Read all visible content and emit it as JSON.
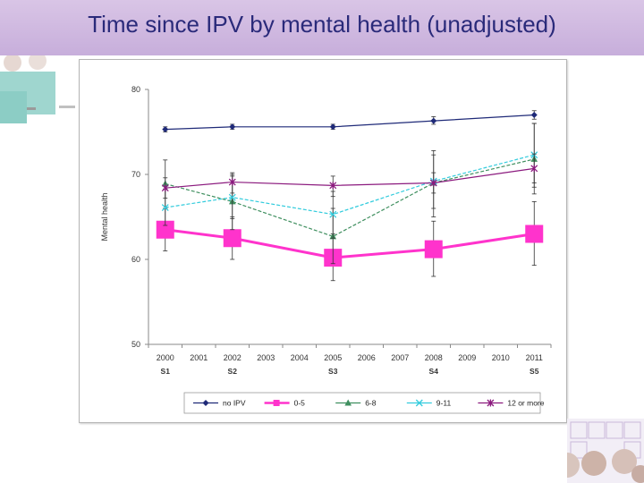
{
  "page": {
    "title": "Time since IPV by mental health (unadjusted)"
  },
  "chart_data": {
    "type": "line",
    "title": "",
    "xlabel": "",
    "ylabel": "Mental health",
    "x": [
      "2000",
      "2001",
      "2002",
      "2003",
      "2004",
      "2005",
      "2006",
      "2007",
      "2008",
      "2009",
      "2010",
      "2011"
    ],
    "ylim": [
      50,
      80
    ],
    "yticks": [
      50,
      60,
      70,
      80
    ],
    "grid": false,
    "legend": "bottom",
    "survey_labels": [
      {
        "x": "2000",
        "label": "S1"
      },
      {
        "x": "2002",
        "label": "S2"
      },
      {
        "x": "2005",
        "label": "S3"
      },
      {
        "x": "2008",
        "label": "S4"
      },
      {
        "x": "2011",
        "label": "S5"
      }
    ],
    "series": [
      {
        "name": "no IPV",
        "color": "#1f2a78",
        "marker": "diamond",
        "points": [
          {
            "x": "2000",
            "y": 75.3,
            "lo": 75.0,
            "hi": 75.6
          },
          {
            "x": "2002",
            "y": 75.6,
            "lo": 75.3,
            "hi": 75.9
          },
          {
            "x": "2005",
            "y": 75.6,
            "lo": 75.3,
            "hi": 75.9
          },
          {
            "x": "2008",
            "y": 76.3,
            "lo": 75.9,
            "hi": 76.8
          },
          {
            "x": "2011",
            "y": 77.0,
            "lo": 76.5,
            "hi": 77.5
          }
        ]
      },
      {
        "name": "0-5",
        "color": "#ff33cc",
        "marker": "square",
        "points": [
          {
            "x": "2000",
            "y": 63.5,
            "lo": 61.0,
            "hi": 66.0
          },
          {
            "x": "2002",
            "y": 62.5,
            "lo": 60.0,
            "hi": 65.0
          },
          {
            "x": "2005",
            "y": 60.2,
            "lo": 57.5,
            "hi": 63.0
          },
          {
            "x": "2008",
            "y": 61.2,
            "lo": 58.0,
            "hi": 64.5
          },
          {
            "x": "2011",
            "y": 63.0,
            "lo": 59.3,
            "hi": 66.8
          }
        ]
      },
      {
        "name": "6-8",
        "color": "#3f8f5f",
        "marker": "triangle",
        "points": [
          {
            "x": "2000",
            "y": 68.9,
            "lo": 66.0,
            "hi": 71.7
          },
          {
            "x": "2002",
            "y": 66.8,
            "lo": 63.5,
            "hi": 70.0
          },
          {
            "x": "2005",
            "y": 62.7,
            "lo": 59.5,
            "hi": 66.0
          },
          {
            "x": "2008",
            "y": 69.0,
            "lo": 65.0,
            "hi": 72.8
          },
          {
            "x": "2011",
            "y": 71.8,
            "lo": 67.7,
            "hi": 76.0
          }
        ]
      },
      {
        "name": "9-11",
        "color": "#33ccdd",
        "marker": "x",
        "points": [
          {
            "x": "2000",
            "y": 66.1,
            "lo": 64.0,
            "hi": 68.3
          },
          {
            "x": "2002",
            "y": 67.3,
            "lo": 64.8,
            "hi": 69.8
          },
          {
            "x": "2005",
            "y": 65.3,
            "lo": 62.5,
            "hi": 68.0
          },
          {
            "x": "2008",
            "y": 69.2,
            "lo": 66.0,
            "hi": 72.3
          },
          {
            "x": "2011",
            "y": 72.3,
            "lo": 68.5,
            "hi": 76.0
          }
        ]
      },
      {
        "name": "12 or more",
        "color": "#8b1a7e",
        "marker": "star",
        "points": [
          {
            "x": "2000",
            "y": 68.4,
            "lo": 67.2,
            "hi": 69.6
          },
          {
            "x": "2002",
            "y": 69.1,
            "lo": 67.8,
            "hi": 70.2
          },
          {
            "x": "2005",
            "y": 68.7,
            "lo": 67.4,
            "hi": 69.8
          },
          {
            "x": "2008",
            "y": 69.0,
            "lo": 67.8,
            "hi": 70.2
          },
          {
            "x": "2011",
            "y": 70.7,
            "lo": 69.0,
            "hi": 72.4
          }
        ]
      }
    ]
  }
}
